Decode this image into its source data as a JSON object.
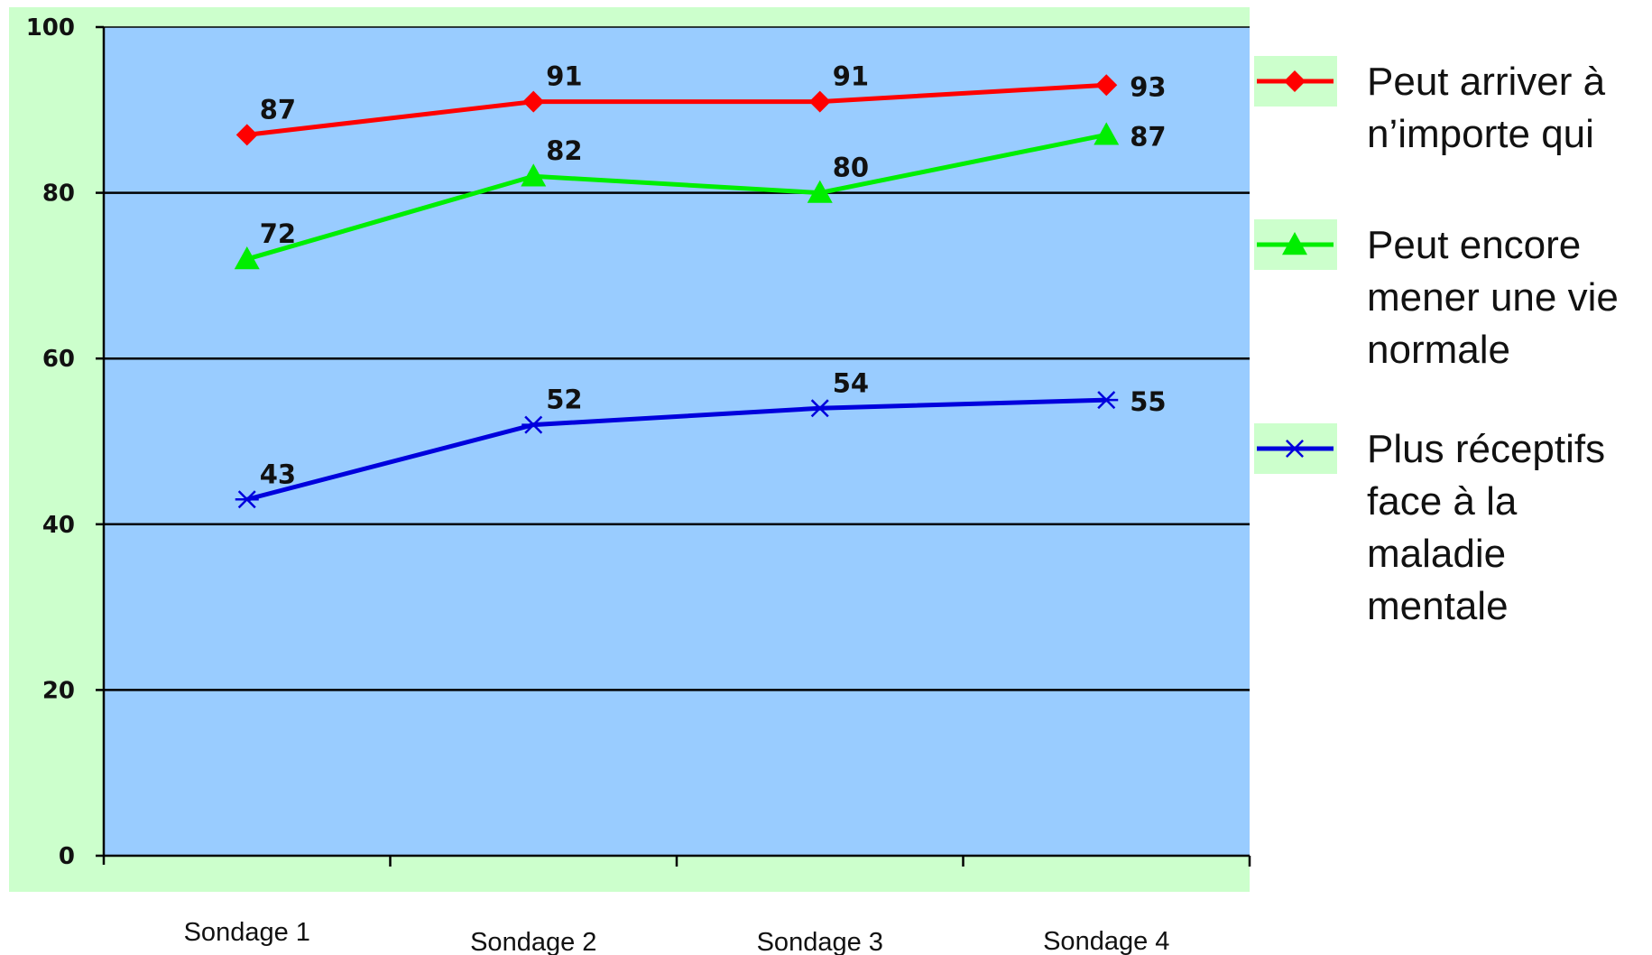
{
  "chart_data": {
    "type": "line",
    "categories": [
      "Sondage 1",
      "Sondage 2",
      "Sondage 3",
      "Sondage 4"
    ],
    "ylim": [
      0,
      100
    ],
    "yticks": [
      0,
      20,
      40,
      60,
      80,
      100
    ],
    "grid": true,
    "legend_position": "right",
    "plot_background": "#99ccff",
    "outer_background": "#ccffcc",
    "series": [
      {
        "name_lines": [
          "Peut arriver à",
          "n’importe qui"
        ],
        "values": [
          87,
          91,
          91,
          93
        ],
        "color": "#ff0000",
        "marker": "diamond"
      },
      {
        "name_lines": [
          "Peut encore",
          "mener une vie",
          "normale"
        ],
        "values": [
          72,
          82,
          80,
          87
        ],
        "color": "#00ee00",
        "marker": "triangle"
      },
      {
        "name_lines": [
          "Plus réceptifs",
          "face à la",
          "maladie",
          "mentale"
        ],
        "values": [
          43,
          52,
          54,
          55
        ],
        "color": "#0000dd",
        "marker": "asterisk"
      }
    ]
  }
}
